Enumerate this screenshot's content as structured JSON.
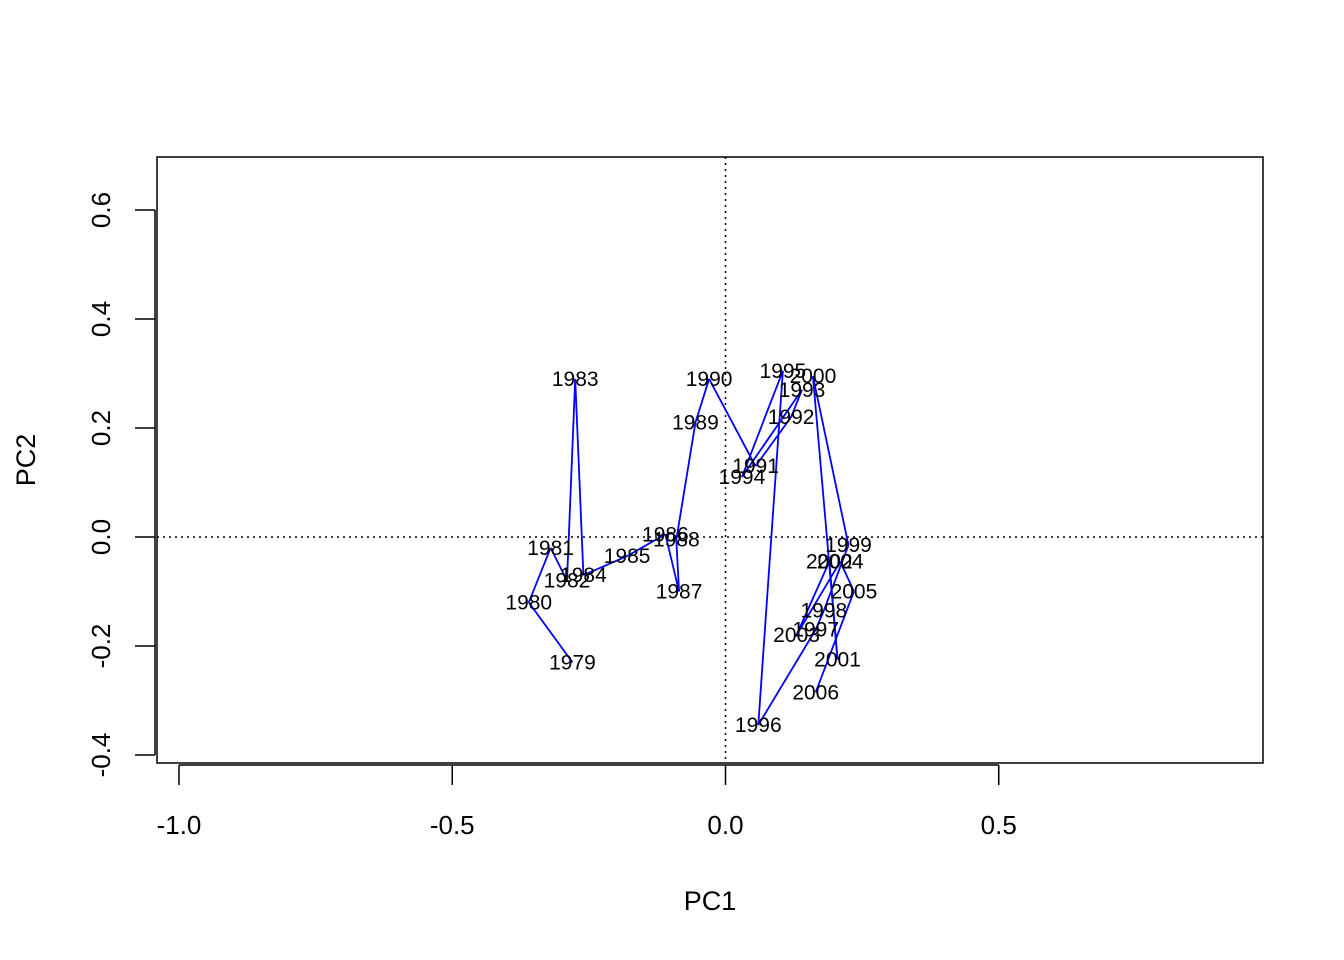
{
  "chart_data": {
    "type": "line",
    "title": "",
    "xlabel": "PC1",
    "ylabel": "PC2",
    "xlim": [
      -1.0,
      0.9
    ],
    "ylim": [
      -0.4,
      0.6
    ],
    "x_ticks": [
      -1.0,
      -0.5,
      0.0,
      0.5
    ],
    "x_tick_labels": [
      "-1.0",
      "-0.5",
      "0.0",
      "0.5"
    ],
    "y_ticks": [
      -0.4,
      -0.2,
      0.0,
      0.2,
      0.4,
      0.6
    ],
    "y_tick_labels": [
      "-0.4",
      "-0.2",
      "0.0",
      "0.2",
      "0.4",
      "0.6"
    ],
    "reference_lines": {
      "x": 0.0,
      "y": 0.0,
      "style": "dotted"
    },
    "grid": false,
    "series_color": "#0000ff",
    "points": [
      {
        "label": "1979",
        "x": -0.28,
        "y": -0.23
      },
      {
        "label": "1980",
        "x": -0.36,
        "y": -0.12
      },
      {
        "label": "1981",
        "x": -0.32,
        "y": -0.02
      },
      {
        "label": "1982",
        "x": -0.29,
        "y": -0.08
      },
      {
        "label": "1983",
        "x": -0.275,
        "y": 0.29
      },
      {
        "label": "1984",
        "x": -0.26,
        "y": -0.07
      },
      {
        "label": "1985",
        "x": -0.18,
        "y": -0.035
      },
      {
        "label": "1986",
        "x": -0.11,
        "y": 0.005
      },
      {
        "label": "1987",
        "x": -0.085,
        "y": -0.1
      },
      {
        "label": "1988",
        "x": -0.09,
        "y": -0.005
      },
      {
        "label": "1989",
        "x": -0.055,
        "y": 0.21
      },
      {
        "label": "1990",
        "x": -0.03,
        "y": 0.29
      },
      {
        "label": "1991",
        "x": 0.055,
        "y": 0.13
      },
      {
        "label": "1992",
        "x": 0.12,
        "y": 0.22
      },
      {
        "label": "1993",
        "x": 0.14,
        "y": 0.27
      },
      {
        "label": "1994",
        "x": 0.03,
        "y": 0.11
      },
      {
        "label": "1995",
        "x": 0.105,
        "y": 0.305
      },
      {
        "label": "1996",
        "x": 0.06,
        "y": -0.345
      },
      {
        "label": "1997",
        "x": 0.165,
        "y": -0.17
      },
      {
        "label": "1998",
        "x": 0.18,
        "y": -0.135
      },
      {
        "label": "1999",
        "x": 0.225,
        "y": -0.015
      },
      {
        "label": "2000",
        "x": 0.16,
        "y": 0.295
      },
      {
        "label": "2001",
        "x": 0.205,
        "y": -0.225
      },
      {
        "label": "2002",
        "x": 0.19,
        "y": -0.045
      },
      {
        "label": "2003",
        "x": 0.13,
        "y": -0.18
      },
      {
        "label": "2004",
        "x": 0.21,
        "y": -0.045
      },
      {
        "label": "2005",
        "x": 0.235,
        "y": -0.1
      },
      {
        "label": "2006",
        "x": 0.165,
        "y": -0.285
      }
    ]
  }
}
